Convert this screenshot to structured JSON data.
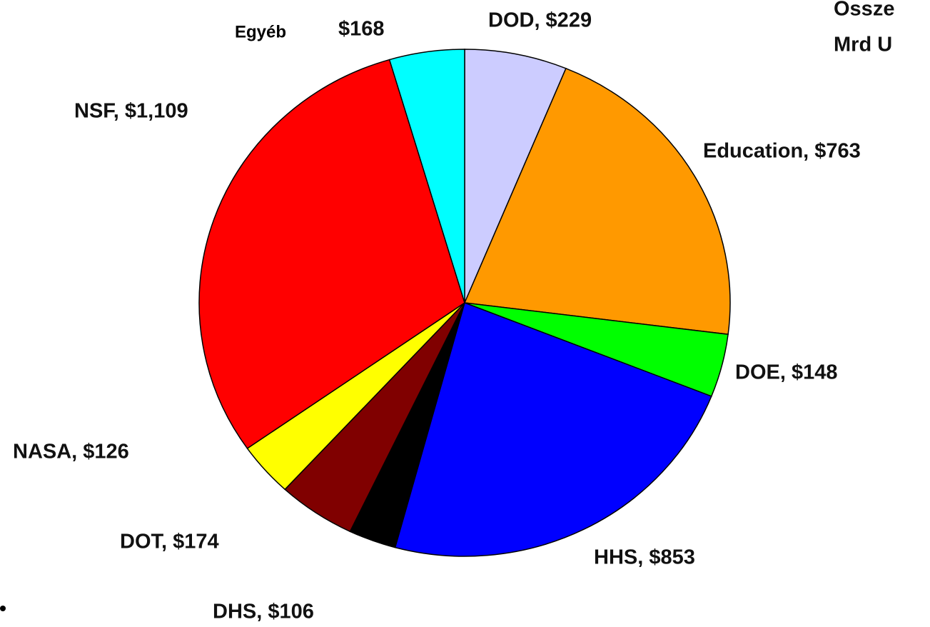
{
  "chart_data": {
    "type": "pie",
    "title_lines": [
      "Össze",
      "Mrd U"
    ],
    "values": [
      229,
      763,
      148,
      853,
      106,
      174,
      126,
      1109,
      168
    ],
    "value_labels": [
      "DOD, $229",
      "Education, $763",
      "DOE, $148",
      "HHS, $853",
      "DHS, $106",
      "DOT, $174",
      "NASA, $126",
      "NSF, $1,109",
      "$168"
    ],
    "other_label": "Egyéb",
    "colors": [
      "#ccccff",
      "#ff9900",
      "#00ff00",
      "#0000ff",
      "#000000",
      "#800000",
      "#ffff00",
      "#ff0000",
      "#00ffff"
    ]
  }
}
